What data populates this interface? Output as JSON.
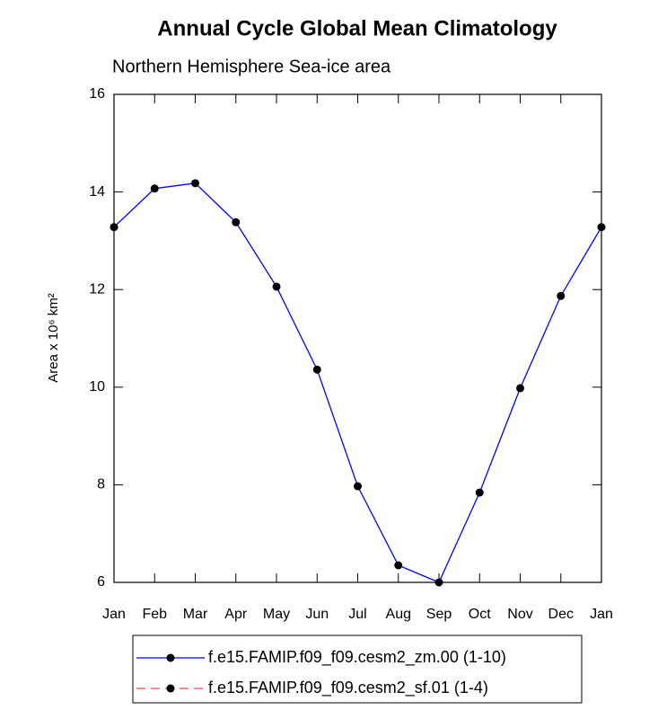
{
  "chart_data": {
    "type": "line",
    "title": "Annual Cycle Global Mean Climatology",
    "subtitle": "Northern Hemisphere Sea-ice area",
    "y_label": "Area x 10⁶ km²",
    "categories": [
      "Jan",
      "Feb",
      "Mar",
      "Apr",
      "May",
      "Jun",
      "Jul",
      "Aug",
      "Sep",
      "Oct",
      "Nov",
      "Dec",
      "Jan"
    ],
    "series": [
      {
        "name": "f.e15.FAMIP.f09_f09.cesm2_zm.00 (1-10)",
        "color": "#0000ff",
        "dash": "solid",
        "values": [
          13.28,
          14.07,
          14.18,
          13.38,
          12.06,
          10.36,
          7.97,
          6.35,
          6.0,
          7.84,
          9.98,
          11.87,
          13.28
        ]
      },
      {
        "name": "f.e15.FAMIP.f09_f09.cesm2_sf.01 (1-4)",
        "color": "#ff4444",
        "dash": "dashed",
        "values": [
          null,
          null,
          null,
          null,
          null,
          null,
          null,
          null,
          null,
          null,
          null,
          null,
          null
        ]
      }
    ],
    "ylim": [
      6,
      16
    ],
    "yticks": [
      6,
      8,
      10,
      12,
      14,
      16
    ],
    "grid": false,
    "legend": "bottom"
  }
}
